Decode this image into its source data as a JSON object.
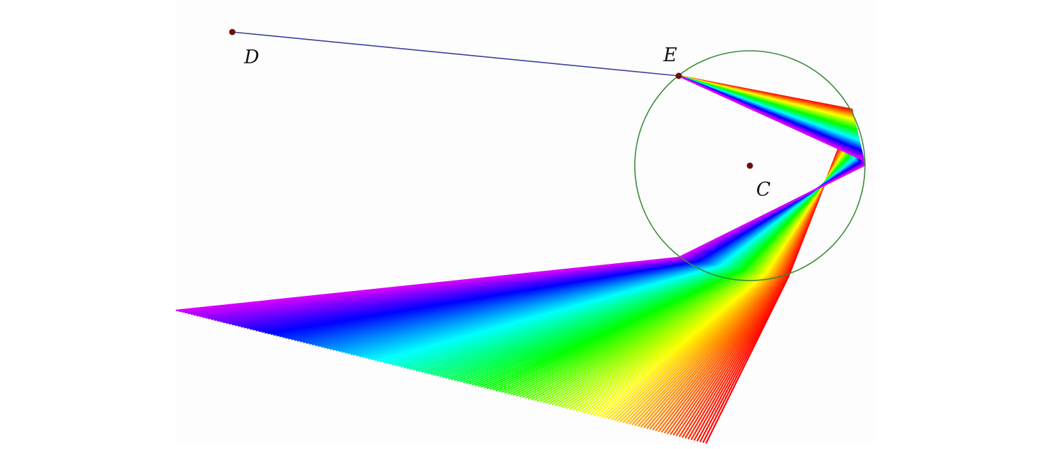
{
  "points": {
    "D": "D",
    "E": "E",
    "C": "C"
  },
  "colors": {
    "background": "#ffffff",
    "panel": "#fdfdfd",
    "incoming_ray": "#3a3f9a",
    "circle": "#3a8a3a",
    "point": "#6b1010"
  },
  "spectrum": [
    "red",
    "orange",
    "yellow",
    "green",
    "cyan",
    "blue",
    "violet"
  ]
}
